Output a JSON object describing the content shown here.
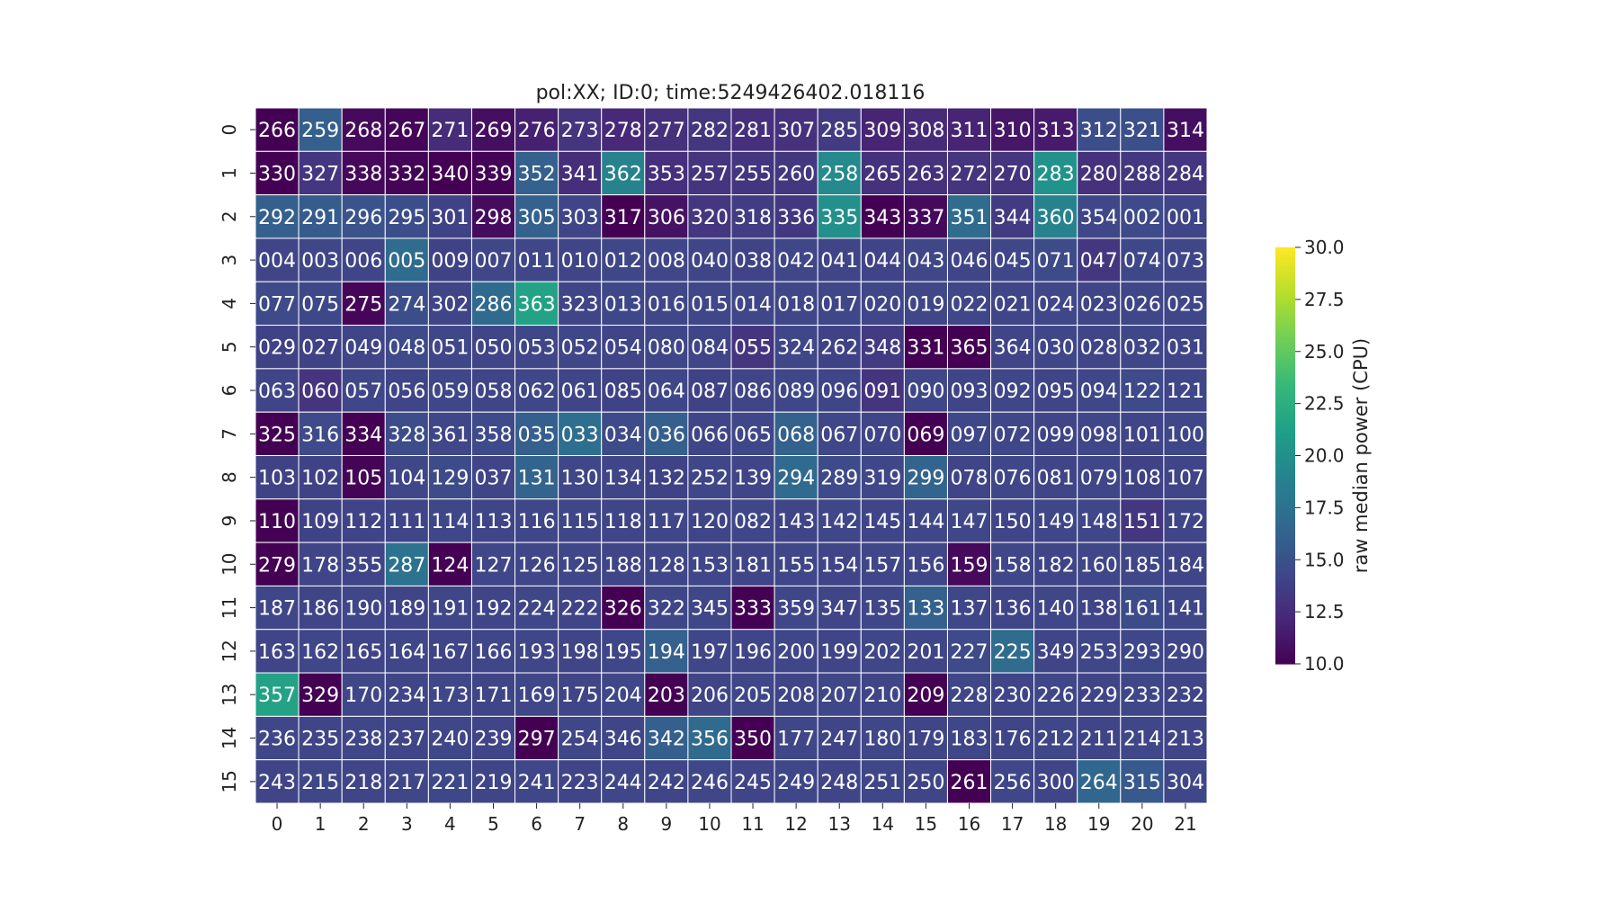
{
  "chart_data": {
    "type": "heatmap",
    "title": "pol:XX; ID:0; time:5249426402.018116",
    "xlabel": "",
    "ylabel": "",
    "x_categories": [
      "0",
      "1",
      "2",
      "3",
      "4",
      "5",
      "6",
      "7",
      "8",
      "9",
      "10",
      "11",
      "12",
      "13",
      "14",
      "15",
      "16",
      "17",
      "18",
      "19",
      "20",
      "21"
    ],
    "y_categories": [
      "0",
      "1",
      "2",
      "3",
      "4",
      "5",
      "6",
      "7",
      "8",
      "9",
      "10",
      "11",
      "12",
      "13",
      "14",
      "15"
    ],
    "annotations": [
      [
        "266",
        "259",
        "268",
        "267",
        "271",
        "269",
        "276",
        "273",
        "278",
        "277",
        "282",
        "281",
        "307",
        "285",
        "309",
        "308",
        "311",
        "310",
        "313",
        "312",
        "321",
        "314"
      ],
      [
        "330",
        "327",
        "338",
        "332",
        "340",
        "339",
        "352",
        "341",
        "362",
        "353",
        "257",
        "255",
        "260",
        "258",
        "265",
        "263",
        "272",
        "270",
        "283",
        "280",
        "288",
        "284"
      ],
      [
        "292",
        "291",
        "296",
        "295",
        "301",
        "298",
        "305",
        "303",
        "317",
        "306",
        "320",
        "318",
        "336",
        "335",
        "343",
        "337",
        "351",
        "344",
        "360",
        "354",
        "002",
        "001"
      ],
      [
        "004",
        "003",
        "006",
        "005",
        "009",
        "007",
        "011",
        "010",
        "012",
        "008",
        "040",
        "038",
        "042",
        "041",
        "044",
        "043",
        "046",
        "045",
        "071",
        "047",
        "074",
        "073"
      ],
      [
        "077",
        "075",
        "275",
        "274",
        "302",
        "286",
        "363",
        "323",
        "013",
        "016",
        "015",
        "014",
        "018",
        "017",
        "020",
        "019",
        "022",
        "021",
        "024",
        "023",
        "026",
        "025"
      ],
      [
        "029",
        "027",
        "049",
        "048",
        "051",
        "050",
        "053",
        "052",
        "054",
        "080",
        "084",
        "055",
        "324",
        "262",
        "348",
        "331",
        "365",
        "364",
        "030",
        "028",
        "032",
        "031"
      ],
      [
        "063",
        "060",
        "057",
        "056",
        "059",
        "058",
        "062",
        "061",
        "085",
        "064",
        "087",
        "086",
        "089",
        "096",
        "091",
        "090",
        "093",
        "092",
        "095",
        "094",
        "122",
        "121"
      ],
      [
        "325",
        "316",
        "334",
        "328",
        "361",
        "358",
        "035",
        "033",
        "034",
        "036",
        "066",
        "065",
        "068",
        "067",
        "070",
        "069",
        "097",
        "072",
        "099",
        "098",
        "101",
        "100"
      ],
      [
        "103",
        "102",
        "105",
        "104",
        "129",
        "037",
        "131",
        "130",
        "134",
        "132",
        "252",
        "139",
        "294",
        "289",
        "319",
        "299",
        "078",
        "076",
        "081",
        "079",
        "108",
        "107"
      ],
      [
        "110",
        "109",
        "112",
        "111",
        "114",
        "113",
        "116",
        "115",
        "118",
        "117",
        "120",
        "082",
        "143",
        "142",
        "145",
        "144",
        "147",
        "150",
        "149",
        "148",
        "151",
        "172"
      ],
      [
        "279",
        "178",
        "355",
        "287",
        "124",
        "127",
        "126",
        "125",
        "188",
        "128",
        "153",
        "181",
        "155",
        "154",
        "157",
        "156",
        "159",
        "158",
        "182",
        "160",
        "185",
        "184"
      ],
      [
        "187",
        "186",
        "190",
        "189",
        "191",
        "192",
        "224",
        "222",
        "326",
        "322",
        "345",
        "333",
        "359",
        "347",
        "135",
        "133",
        "137",
        "136",
        "140",
        "138",
        "161",
        "141"
      ],
      [
        "163",
        "162",
        "165",
        "164",
        "167",
        "166",
        "193",
        "198",
        "195",
        "194",
        "197",
        "196",
        "200",
        "199",
        "202",
        "201",
        "227",
        "225",
        "349",
        "253",
        "293",
        "290"
      ],
      [
        "357",
        "329",
        "170",
        "234",
        "173",
        "171",
        "169",
        "175",
        "204",
        "203",
        "206",
        "205",
        "208",
        "207",
        "210",
        "209",
        "228",
        "230",
        "226",
        "229",
        "233",
        "232"
      ],
      [
        "236",
        "235",
        "238",
        "237",
        "240",
        "239",
        "297",
        "254",
        "346",
        "342",
        "356",
        "350",
        "177",
        "247",
        "180",
        "179",
        "183",
        "176",
        "212",
        "211",
        "214",
        "213"
      ],
      [
        "243",
        "215",
        "218",
        "217",
        "221",
        "219",
        "241",
        "223",
        "244",
        "242",
        "246",
        "245",
        "249",
        "248",
        "251",
        "250",
        "261",
        "256",
        "300",
        "264",
        "315",
        "304"
      ]
    ],
    "values": [
      [
        10.0,
        16.0,
        10.5,
        10.3,
        12.5,
        10.8,
        11.8,
        13.0,
        12.3,
        12.8,
        13.2,
        12.7,
        12.8,
        13.5,
        12.0,
        12.4,
        12.0,
        11.2,
        11.4,
        14.8,
        14.9,
        10.8
      ],
      [
        10.0,
        13.2,
        10.4,
        10.2,
        10.0,
        10.1,
        16.2,
        12.6,
        19.0,
        12.7,
        13.0,
        13.1,
        13.3,
        19.5,
        12.8,
        12.8,
        13.0,
        13.0,
        20.2,
        12.8,
        13.3,
        13.2
      ],
      [
        16.0,
        15.8,
        15.2,
        14.8,
        14.0,
        10.6,
        16.2,
        14.2,
        10.0,
        11.0,
        13.2,
        13.6,
        13.3,
        20.0,
        10.0,
        10.5,
        17.0,
        13.5,
        19.0,
        14.3,
        14.5,
        14.2
      ],
      [
        14.2,
        14.3,
        14.2,
        17.0,
        14.0,
        14.3,
        14.3,
        14.2,
        14.3,
        14.3,
        14.2,
        14.1,
        14.3,
        14.2,
        14.1,
        14.3,
        14.2,
        14.3,
        14.6,
        13.2,
        14.4,
        14.3
      ],
      [
        14.5,
        14.4,
        10.3,
        14.8,
        14.2,
        16.8,
        21.5,
        14.2,
        14.4,
        14.3,
        14.3,
        14.3,
        14.3,
        14.3,
        14.3,
        14.3,
        14.3,
        14.2,
        14.3,
        14.2,
        14.3,
        14.3
      ],
      [
        14.0,
        14.0,
        14.2,
        14.5,
        14.3,
        14.2,
        14.3,
        14.3,
        14.2,
        14.3,
        14.2,
        13.0,
        14.3,
        14.0,
        13.5,
        10.0,
        10.0,
        14.2,
        14.3,
        14.2,
        14.3,
        14.2
      ],
      [
        14.2,
        13.0,
        14.3,
        14.2,
        14.3,
        14.2,
        14.3,
        14.2,
        14.0,
        14.3,
        14.0,
        14.2,
        14.3,
        14.2,
        13.0,
        14.3,
        14.2,
        14.3,
        14.2,
        14.3,
        14.5,
        14.3
      ],
      [
        10.0,
        14.5,
        10.0,
        14.7,
        14.3,
        14.5,
        16.0,
        17.2,
        14.6,
        16.0,
        14.2,
        14.3,
        16.2,
        14.3,
        14.2,
        10.0,
        14.4,
        14.3,
        14.2,
        14.3,
        14.2,
        14.3
      ],
      [
        14.0,
        14.0,
        10.2,
        14.3,
        14.6,
        14.2,
        16.4,
        14.3,
        14.2,
        14.0,
        14.3,
        14.2,
        16.8,
        14.5,
        14.3,
        16.4,
        14.2,
        14.3,
        14.2,
        14.3,
        14.0,
        14.2
      ],
      [
        10.0,
        14.0,
        14.1,
        14.2,
        14.3,
        14.2,
        14.3,
        14.3,
        14.2,
        14.3,
        14.2,
        14.3,
        14.2,
        14.3,
        14.2,
        14.3,
        14.3,
        14.2,
        14.3,
        14.3,
        13.2,
        14.2
      ],
      [
        10.0,
        14.2,
        14.2,
        17.5,
        10.0,
        14.3,
        14.3,
        14.3,
        14.2,
        14.3,
        14.3,
        14.2,
        14.3,
        14.2,
        14.3,
        14.3,
        10.5,
        14.3,
        14.2,
        14.3,
        14.3,
        14.2
      ],
      [
        14.3,
        14.2,
        14.3,
        14.2,
        14.3,
        14.2,
        14.3,
        14.2,
        10.0,
        14.3,
        14.3,
        10.0,
        14.3,
        14.2,
        14.3,
        16.2,
        14.3,
        14.2,
        14.3,
        14.2,
        14.6,
        14.3
      ],
      [
        14.2,
        14.3,
        14.2,
        14.3,
        14.2,
        14.3,
        14.3,
        14.2,
        14.3,
        16.2,
        14.3,
        14.2,
        14.3,
        14.2,
        14.3,
        14.2,
        14.5,
        17.0,
        14.2,
        14.3,
        14.4,
        14.3
      ],
      [
        21.5,
        10.0,
        14.3,
        14.2,
        14.3,
        14.2,
        14.3,
        14.2,
        14.3,
        10.0,
        14.2,
        14.3,
        14.2,
        14.3,
        14.2,
        10.0,
        14.3,
        14.2,
        14.3,
        14.2,
        14.3,
        14.2
      ],
      [
        14.3,
        14.2,
        14.3,
        14.2,
        14.3,
        14.2,
        10.0,
        14.3,
        14.2,
        16.0,
        16.8,
        10.0,
        14.3,
        14.2,
        14.3,
        14.2,
        14.3,
        14.2,
        14.3,
        14.2,
        14.3,
        14.2
      ],
      [
        14.2,
        14.3,
        14.2,
        14.3,
        14.4,
        14.2,
        14.3,
        14.2,
        14.3,
        14.2,
        14.3,
        14.2,
        14.3,
        14.2,
        14.3,
        14.2,
        10.0,
        14.3,
        14.2,
        16.6,
        15.6,
        14.3
      ]
    ],
    "colorbar": {
      "label": "raw median power (CPU)",
      "min": 10.0,
      "max": 30.0,
      "ticks": [
        "10.0",
        "12.5",
        "15.0",
        "17.5",
        "20.0",
        "22.5",
        "25.0",
        "27.5",
        "30.0"
      ],
      "colormap": "viridis"
    },
    "colors": {
      "viridis_stops": [
        "#440154",
        "#482878",
        "#3e4989",
        "#31688e",
        "#26828e",
        "#1f9e89",
        "#35b779",
        "#6ece58",
        "#b5de2b",
        "#fde725"
      ],
      "annotation_text": "#ffffff",
      "cell_border": "#ffffff"
    }
  }
}
